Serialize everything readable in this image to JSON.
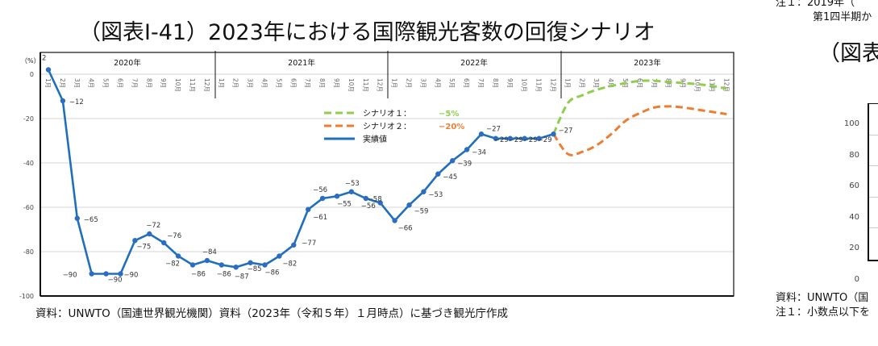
{
  "title": "（図表Ⅰ-41）2023年における国際観光客数の回復シナリオ",
  "source": "資料：UNWTO（国連世界観光機関）資料（2023年（令和５年）１月時点）に基づき観光庁作成",
  "right_panel": {
    "note_top_1": "注１：2019年（",
    "note_top_2": "第1四半期か",
    "title": "（図表",
    "y_ticks": [
      "100",
      "80",
      "60",
      "40",
      "20",
      "0"
    ],
    "source": "資料：UNWTO（国",
    "note_1": "注１：小数点以下を"
  },
  "chart_data": {
    "type": "line",
    "title": "（図表Ⅰ-41）2023年における国際観光客数の回復シナリオ",
    "ylabel": "（%）",
    "ylim": [
      -100,
      0
    ],
    "y_ticks": [
      "0",
      "-20",
      "-40",
      "-60",
      "-80",
      "-100"
    ],
    "y_tick_values": [
      0,
      -20,
      -40,
      -60,
      -80,
      -100
    ],
    "grid": true,
    "legend_placement": "top-center",
    "years": [
      "2020年",
      "2021年",
      "2022年",
      "2023年"
    ],
    "months": [
      "1月",
      "2月",
      "3月",
      "4月",
      "5月",
      "6月",
      "7月",
      "8月",
      "9月",
      "10月",
      "11月",
      "12月"
    ],
    "series": [
      {
        "name": "実績値",
        "color": "#1f6fbf",
        "style": "solid-markers",
        "values": [
          2,
          -12,
          -65,
          -90,
          -90,
          -90,
          -75,
          -72,
          -76,
          -82,
          -86,
          -84,
          -86,
          -87,
          -85,
          -86,
          -82,
          -77,
          -61,
          -56,
          -55,
          -53,
          -56,
          -58,
          -66,
          -59,
          -53,
          -45,
          -39,
          -34,
          -27,
          -29,
          -29,
          -29,
          -29,
          -27
        ],
        "labels": [
          "2",
          "−12",
          "−65",
          "−90",
          "−90",
          "−90",
          "−75",
          "−72",
          "−76",
          "−82",
          "−86",
          "−84",
          "−86",
          "−87",
          "−85",
          "−86",
          "−82",
          "−77",
          "−61",
          "−56",
          "−55",
          "−53",
          "−56",
          "−58",
          "−66",
          "−59",
          "−53",
          "−45",
          "−39",
          "−34",
          "−27",
          "−29",
          "−29",
          "−29",
          "−29",
          "−27"
        ]
      },
      {
        "name": "シナリオ１：",
        "value_label": "−5%",
        "color": "#8fce4e",
        "style": "dashed",
        "values": [
          -13,
          -9.5,
          -7,
          -5.3,
          -4,
          -3,
          -3,
          -3.5,
          -4,
          -4.5,
          -5.3,
          -6.5
        ]
      },
      {
        "name": "シナリオ２：",
        "value_label": "−20%",
        "color": "#ec7d31",
        "style": "dashed",
        "values": [
          -36,
          -35,
          -32,
          -27,
          -21,
          -17.5,
          -15,
          -14.5,
          -15,
          -16,
          -17,
          -18
        ]
      }
    ]
  }
}
